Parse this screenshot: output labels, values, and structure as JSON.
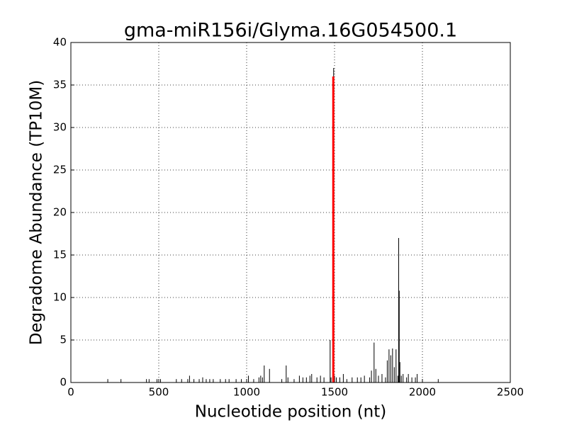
{
  "chart_data": {
    "type": "stem",
    "title": "gma-miR156i/Glyma.16G054500.1",
    "x_label": "Nucleotide position (nt)",
    "y_label": "Degradome Abundance (TP10M)",
    "xlim": [
      0,
      2500
    ],
    "xticks": [
      0,
      500,
      1000,
      1500,
      2000,
      2500
    ],
    "ylim": [
      0,
      40
    ],
    "yticks": [
      0,
      5,
      10,
      15,
      20,
      25,
      30,
      35,
      40
    ],
    "grid": true,
    "series": [
      {
        "color": "#000000",
        "x": [
          210,
          285,
          430,
          445,
          490,
          500,
          510,
          600,
          630,
          665,
          675,
          700,
          730,
          750,
          770,
          790,
          810,
          850,
          880,
          900,
          940,
          970,
          1000,
          1010,
          1040,
          1070,
          1080,
          1090,
          1100,
          1130,
          1200,
          1225,
          1235,
          1270,
          1300,
          1320,
          1340,
          1360,
          1370,
          1400,
          1420,
          1440,
          1475,
          1480,
          1495,
          1500,
          1510,
          1530,
          1550,
          1570,
          1600,
          1630,
          1650,
          1670,
          1700,
          1710,
          1725,
          1735,
          1750,
          1770,
          1790,
          1800,
          1810,
          1820,
          1830,
          1840,
          1850,
          1860,
          1865,
          1868,
          1872,
          1880,
          1890,
          1910,
          1920,
          1940,
          1960,
          1970,
          2090
        ],
        "values": [
          0.4,
          0.4,
          0.4,
          0.4,
          0.4,
          0.4,
          0.4,
          0.4,
          0.4,
          0.4,
          0.8,
          0.4,
          0.4,
          0.6,
          0.4,
          0.4,
          0.4,
          0.4,
          0.4,
          0.4,
          0.4,
          0.4,
          0.4,
          0.8,
          0.4,
          0.6,
          0.8,
          0.6,
          2.0,
          1.6,
          0.4,
          2.0,
          0.6,
          0.4,
          0.8,
          0.6,
          0.6,
          0.8,
          1.0,
          0.6,
          0.8,
          0.6,
          5.0,
          0.6,
          37,
          0.8,
          0.6,
          0.6,
          1.0,
          0.4,
          0.6,
          0.6,
          0.6,
          0.8,
          0.6,
          1.4,
          4.7,
          1.6,
          0.8,
          1.0,
          0.6,
          2.6,
          3.9,
          3.2,
          4.0,
          1.8,
          3.9,
          0.8,
          17,
          10.8,
          2.4,
          0.8,
          1.0,
          0.6,
          1.0,
          0.6,
          0.6,
          1.0,
          0.4
        ]
      },
      {
        "color": "#ff0000",
        "x": [
          1493
        ],
        "values": [
          36
        ]
      }
    ]
  }
}
